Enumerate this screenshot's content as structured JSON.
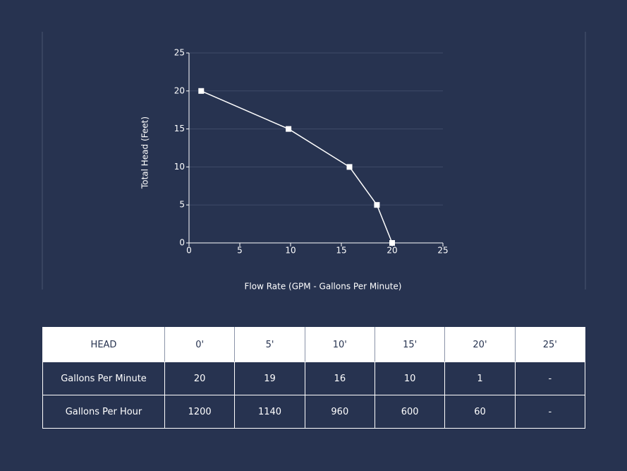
{
  "chart_data": {
    "type": "line",
    "x_label": "Flow Rate (GPM - Gallons Per Minute)",
    "y_label": "Total Head (Feet)",
    "x": [
      1.2,
      9.8,
      15.8,
      18.5,
      20
    ],
    "values": [
      20,
      15,
      10,
      5,
      0
    ],
    "color": "#ffffff",
    "xlim": [
      0,
      25
    ],
    "xticks": [
      0,
      5,
      10,
      15,
      20,
      25
    ],
    "ylim": [
      0,
      25
    ],
    "yticks": [
      0,
      5,
      10,
      15,
      20,
      25
    ],
    "grid": true
  },
  "table": {
    "header": [
      "HEAD",
      "0'",
      "5'",
      "10'",
      "15'",
      "20'",
      "25'"
    ],
    "rows": [
      [
        "Gallons Per Minute",
        "20",
        "19",
        "16",
        "10",
        "1",
        "-"
      ],
      [
        "Gallons Per Hour",
        "1200",
        "1140",
        "960",
        "600",
        "60",
        "-"
      ]
    ]
  }
}
